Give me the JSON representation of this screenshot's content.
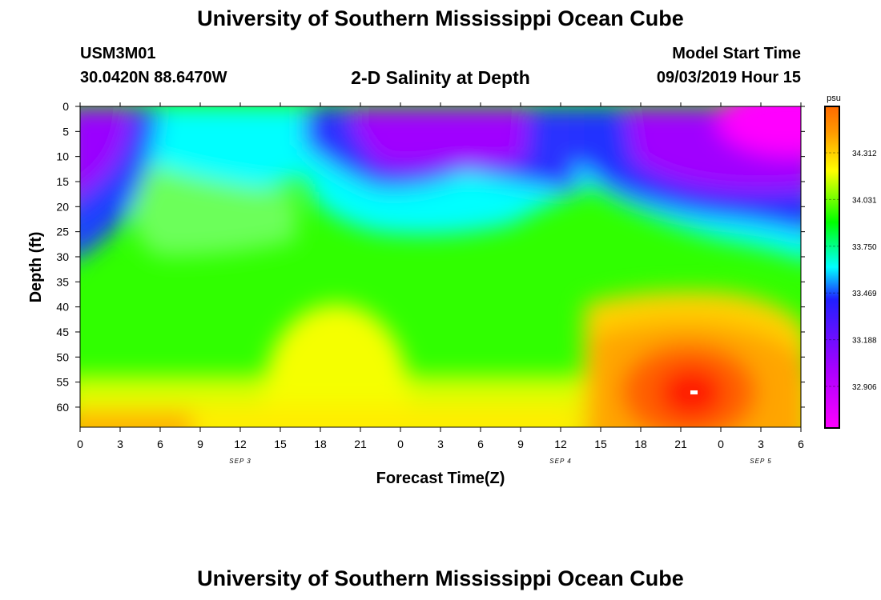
{
  "header": {
    "title": "University of Southern Mississippi Ocean Cube",
    "station_id": "USM3M01",
    "coords": "30.0420N 88.6470W",
    "subtitle": "2-D Salinity at Depth",
    "model_start_label": "Model Start Time",
    "model_start_value": "09/03/2019 Hour 15"
  },
  "footer": {
    "title": "University of Southern Mississippi Ocean Cube"
  },
  "chart_data": {
    "type": "heatmap",
    "title": "2-D Salinity at Depth",
    "xlabel": "Forecast Time(Z)",
    "ylabel": "Depth (ft)",
    "ylim": [
      0,
      64
    ],
    "x_tick_labels": [
      "0",
      "3",
      "6",
      "9",
      "12",
      "15",
      "18",
      "21",
      "0",
      "3",
      "6",
      "9",
      "12",
      "15",
      "18",
      "21",
      "0",
      "3",
      "6"
    ],
    "y_ticks": [
      0,
      5,
      10,
      15,
      20,
      25,
      30,
      35,
      40,
      45,
      50,
      55,
      60
    ],
    "date_labels": [
      {
        "text": "SEP 3",
        "hour_index": 4
      },
      {
        "text": "SEP 4",
        "hour_index": 12
      },
      {
        "text": "SEP 5",
        "hour_index": 17
      }
    ],
    "colorbar": {
      "unit": "psu",
      "ticks": [
        "34.312",
        "34.031",
        "33.750",
        "33.469",
        "33.188",
        "32.906"
      ],
      "colors": [
        "#ff00ff",
        "#aa00ff",
        "#2020ff",
        "#00ffff",
        "#00ff00",
        "#ffff00",
        "#ff9900",
        "#ff2a00"
      ]
    }
  }
}
